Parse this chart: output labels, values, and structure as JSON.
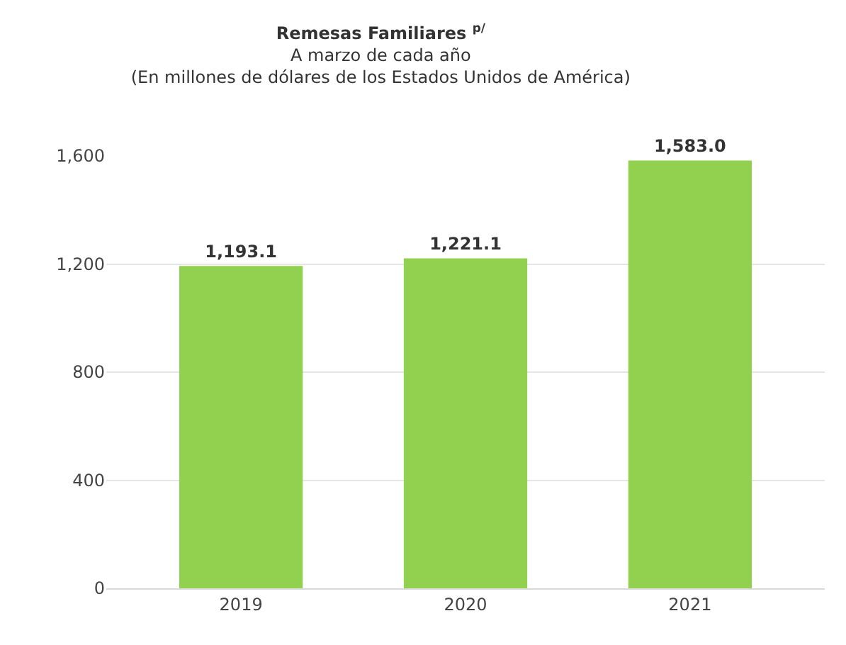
{
  "chart_data": {
    "type": "bar",
    "title": "Remesas Familiares $^{p/}$",
    "subtitle": "A marzo de cada año\n(En millones de dólares de los Estados Unidos de América)",
    "categories": [
      "2019",
      "2020",
      "2021"
    ],
    "values": [
      1193.1,
      1221.1,
      1583.0
    ],
    "value_labels": [
      "1,193.1",
      "1,221.1",
      "1,583.0"
    ],
    "color": "#92d050",
    "ylim": [
      0,
      1600
    ],
    "yticks": [
      0,
      {
        "value": 400,
        "label": "400"
      },
      {
        "value": 800,
        "label": "800"
      },
      {
        "value": 1200,
        "label": "1,200"
      },
      {
        "value": 1600,
        "label": "1,600"
      }
    ],
    "grid": "y"
  }
}
